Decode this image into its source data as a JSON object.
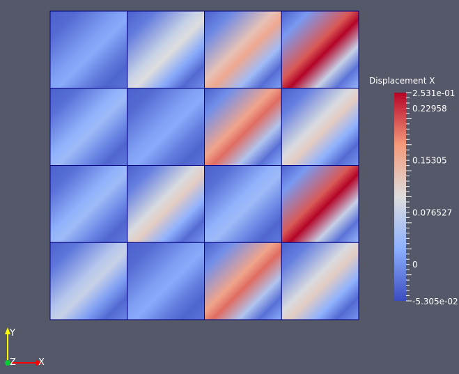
{
  "colorbar": {
    "title": "Displacement X",
    "max_label": "2.531e-01",
    "min_label": "-5.305e-02",
    "ticks": [
      {
        "value": 0.22958,
        "label": "0.22958"
      },
      {
        "value": 0.15305,
        "label": "0.15305"
      },
      {
        "value": 0.076527,
        "label": "0.076527"
      },
      {
        "value": 0,
        "label": "0"
      }
    ],
    "range": [
      -0.05305,
      0.2531
    ],
    "colormap": [
      "#3b4cc0",
      "#8db0fe",
      "#dddddd",
      "#f49a7b",
      "#b40426"
    ]
  },
  "axes": {
    "x_label": "X",
    "y_label": "Y",
    "z_label": "Z",
    "x_color": "#ff0000",
    "y_color": "#ffff00",
    "z_color": "#00cc33"
  },
  "mesh": {
    "rows": 4,
    "cols": 4,
    "edge_color": "#000080",
    "cell_max": [
      [
        0.02,
        0.1,
        0.16,
        0.2531
      ],
      [
        0.04,
        0.02,
        0.2,
        0.12
      ],
      [
        0.04,
        0.12,
        0.04,
        0.2531
      ],
      [
        0.08,
        0.02,
        0.2,
        0.12
      ]
    ]
  }
}
